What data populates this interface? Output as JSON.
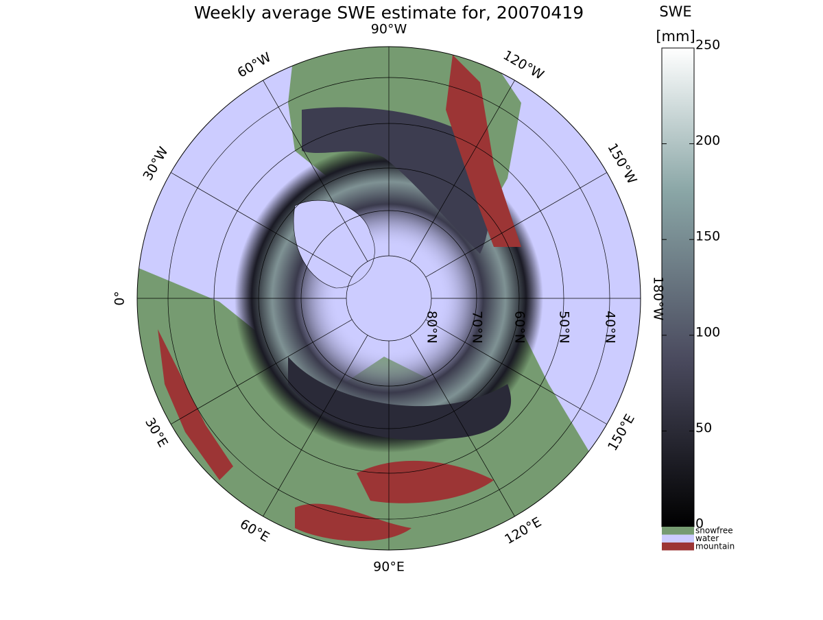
{
  "title": "Weekly average SWE estimate for, 20070419",
  "colorbar": {
    "label_top": "SWE",
    "label_unit": "[mm]",
    "range": [
      0,
      250
    ],
    "ticks": [
      0,
      50,
      100,
      150,
      200,
      250
    ]
  },
  "legend": [
    {
      "name": "snowfree",
      "color": "#769b71"
    },
    {
      "name": "water",
      "color": "#ccccff"
    },
    {
      "name": "mountain",
      "color": "#9c3535"
    }
  ],
  "longitude_labels": [
    "0°",
    "30°E",
    "60°E",
    "90°E",
    "120°E",
    "150°E",
    "180°W",
    "150°W",
    "120°W",
    "90°W",
    "60°W",
    "30°W"
  ],
  "latitude_labels": [
    "80°N",
    "70°N",
    "60°N",
    "50°N",
    "40°N"
  ]
}
